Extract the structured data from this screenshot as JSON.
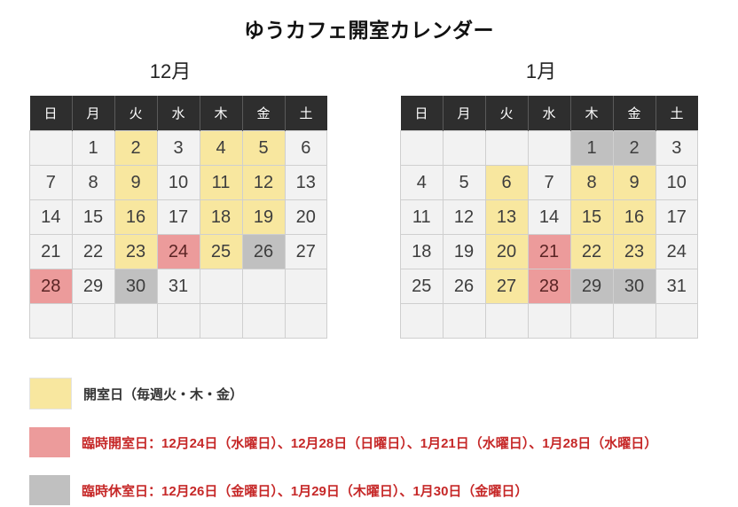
{
  "title": "ゆうカフェ開室カレンダー",
  "weekday_headers": [
    "日",
    "月",
    "火",
    "水",
    "木",
    "金",
    "土"
  ],
  "colors": {
    "open_day": "#f8e79f",
    "special_open_day": "#ec9b9b",
    "closed_day": "#c0c0c0",
    "header_bg": "#2e2e2e",
    "cell_bg": "#f2f2f2",
    "cell_border": "#cfcfcf",
    "legend_red_text": "#c62828"
  },
  "calendars": [
    {
      "id": "december",
      "label": "12月",
      "weeks": [
        [
          {
            "d": ""
          },
          {
            "d": "1"
          },
          {
            "d": "2",
            "s": "open"
          },
          {
            "d": "3"
          },
          {
            "d": "4",
            "s": "open"
          },
          {
            "d": "5",
            "s": "open"
          },
          {
            "d": "6"
          }
        ],
        [
          {
            "d": "7"
          },
          {
            "d": "8"
          },
          {
            "d": "9",
            "s": "open"
          },
          {
            "d": "10"
          },
          {
            "d": "11",
            "s": "open"
          },
          {
            "d": "12",
            "s": "open"
          },
          {
            "d": "13"
          }
        ],
        [
          {
            "d": "14"
          },
          {
            "d": "15"
          },
          {
            "d": "16",
            "s": "open"
          },
          {
            "d": "17"
          },
          {
            "d": "18",
            "s": "open"
          },
          {
            "d": "19",
            "s": "open"
          },
          {
            "d": "20"
          }
        ],
        [
          {
            "d": "21"
          },
          {
            "d": "22"
          },
          {
            "d": "23",
            "s": "open"
          },
          {
            "d": "24",
            "s": "special_open"
          },
          {
            "d": "25",
            "s": "open"
          },
          {
            "d": "26",
            "s": "closed"
          },
          {
            "d": "27"
          }
        ],
        [
          {
            "d": "28",
            "s": "special_open"
          },
          {
            "d": "29"
          },
          {
            "d": "30",
            "s": "closed"
          },
          {
            "d": "31"
          },
          {
            "d": ""
          },
          {
            "d": ""
          },
          {
            "d": ""
          }
        ],
        [
          {
            "d": ""
          },
          {
            "d": ""
          },
          {
            "d": ""
          },
          {
            "d": ""
          },
          {
            "d": ""
          },
          {
            "d": ""
          },
          {
            "d": ""
          }
        ]
      ]
    },
    {
      "id": "january",
      "label": "1月",
      "weeks": [
        [
          {
            "d": ""
          },
          {
            "d": ""
          },
          {
            "d": ""
          },
          {
            "d": ""
          },
          {
            "d": "1",
            "s": "closed"
          },
          {
            "d": "2",
            "s": "closed"
          },
          {
            "d": "3"
          }
        ],
        [
          {
            "d": "4"
          },
          {
            "d": "5"
          },
          {
            "d": "6",
            "s": "open"
          },
          {
            "d": "7"
          },
          {
            "d": "8",
            "s": "open"
          },
          {
            "d": "9",
            "s": "open"
          },
          {
            "d": "10"
          }
        ],
        [
          {
            "d": "11"
          },
          {
            "d": "12"
          },
          {
            "d": "13",
            "s": "open"
          },
          {
            "d": "14"
          },
          {
            "d": "15",
            "s": "open"
          },
          {
            "d": "16",
            "s": "open"
          },
          {
            "d": "17"
          }
        ],
        [
          {
            "d": "18"
          },
          {
            "d": "19"
          },
          {
            "d": "20",
            "s": "open"
          },
          {
            "d": "21",
            "s": "special_open"
          },
          {
            "d": "22",
            "s": "open"
          },
          {
            "d": "23",
            "s": "open"
          },
          {
            "d": "24"
          }
        ],
        [
          {
            "d": "25"
          },
          {
            "d": "26"
          },
          {
            "d": "27",
            "s": "open"
          },
          {
            "d": "28",
            "s": "special_open"
          },
          {
            "d": "29",
            "s": "closed"
          },
          {
            "d": "30",
            "s": "closed"
          },
          {
            "d": "31"
          }
        ],
        [
          {
            "d": ""
          },
          {
            "d": ""
          },
          {
            "d": ""
          },
          {
            "d": ""
          },
          {
            "d": ""
          },
          {
            "d": ""
          },
          {
            "d": ""
          }
        ]
      ]
    }
  ],
  "legend": [
    {
      "type": "open",
      "text": "開室日（毎週火・木・金）"
    },
    {
      "type": "special_open",
      "text": "臨時開室日：12月24日（水曜日）、12月28日（日曜日）、1月21日（水曜日）、1月28日（水曜日）"
    },
    {
      "type": "closed",
      "text": "臨時休室日：12月26日（金曜日）、1月29日（木曜日）、1月30日（金曜日）"
    }
  ]
}
